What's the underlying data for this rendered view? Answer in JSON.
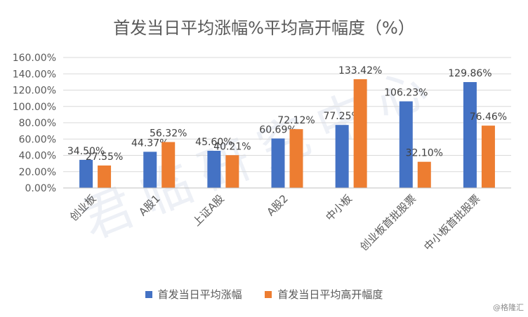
{
  "chart_data": {
    "type": "bar",
    "title": "首发当日平均涨幅%平均高开幅度（%）",
    "categories": [
      "创业板",
      "A股1",
      "上证A股",
      "A股2",
      "中小板",
      "创业板首批股票",
      "中小板首批股票"
    ],
    "series": [
      {
        "name": "首发当日平均涨幅",
        "color": "#4472C4",
        "values": [
          34.5,
          44.37,
          45.6,
          60.69,
          77.25,
          106.23,
          129.86
        ],
        "labels": [
          "34.50%",
          "44.37%",
          "45.60%",
          "60.69%",
          "77.25%",
          "106.23%",
          "129.86%"
        ]
      },
      {
        "name": "首发当日平均高开幅度",
        "color": "#ED7D31",
        "values": [
          27.55,
          56.32,
          40.21,
          72.12,
          133.42,
          32.1,
          76.46
        ],
        "labels": [
          "27.55%",
          "56.32%",
          "40.21%",
          "72.12%",
          "133.42%",
          "32.10%",
          "76.46%"
        ]
      }
    ],
    "ylim": [
      0,
      160
    ],
    "yticks": [
      "0.00%",
      "20.00%",
      "40.00%",
      "60.00%",
      "80.00%",
      "100.00%",
      "120.00%",
      "140.00%",
      "160.00%"
    ],
    "grid": true,
    "legend": "bottom"
  },
  "watermark": {
    "text": "君临研究中心",
    "credit": "@格隆汇"
  }
}
